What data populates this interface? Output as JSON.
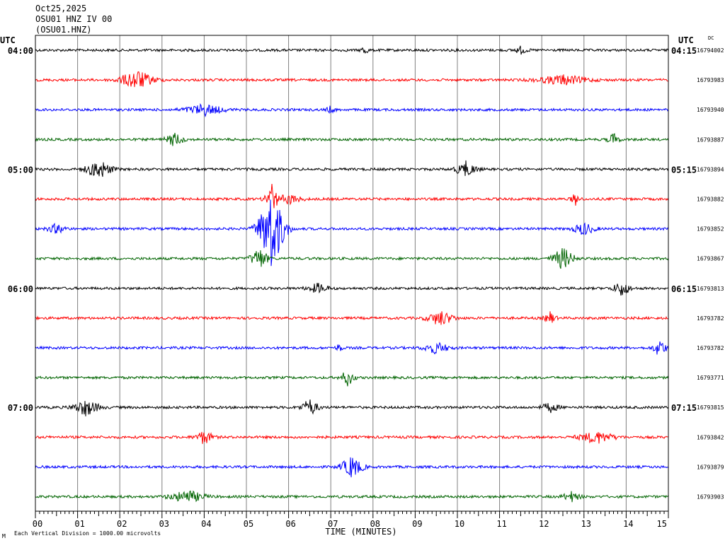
{
  "header": {
    "date": "Oct25,2025",
    "station": "OSU01 HNZ IV 00",
    "code": "(OSU01.HNZ)"
  },
  "labels": {
    "utc_left": "UTC",
    "utc_right": "UTC",
    "dc": "DC"
  },
  "colors": {
    "trace_cycle": [
      "#000000",
      "#ff0000",
      "#0000ff",
      "#006400"
    ],
    "grid": "#808080",
    "frame": "#000000"
  },
  "chart_data": {
    "type": "line",
    "title": "",
    "xlabel": "TIME (MINUTES)",
    "ylabel": "",
    "xlim": [
      0,
      15
    ],
    "x_ticks": [
      "00",
      "01",
      "02",
      "03",
      "04",
      "05",
      "06",
      "07",
      "08",
      "09",
      "10",
      "11",
      "12",
      "13",
      "14",
      "15"
    ],
    "hour_labels_left": [
      "04:00",
      "05:00",
      "06:00",
      "07:00"
    ],
    "hour_labels_right": [
      "04:15",
      "05:15",
      "06:15",
      "07:15"
    ],
    "trace_counts": [
      "16794002",
      "16793983",
      "16793940",
      "16793887",
      "16793894",
      "16793882",
      "16793852",
      "16793867",
      "16793813",
      "16793782",
      "16793782",
      "16793771",
      "16793815",
      "16793842",
      "16793879",
      "16793903"
    ],
    "events": [
      {
        "trace": 0,
        "minute": 7.8,
        "amp": 8,
        "dur": 0.15
      },
      {
        "trace": 0,
        "minute": 11.5,
        "amp": 5,
        "dur": 0.3
      },
      {
        "trace": 1,
        "minute": 2.4,
        "amp": 14,
        "dur": 0.8
      },
      {
        "trace": 1,
        "minute": 12.5,
        "amp": 7,
        "dur": 1.2
      },
      {
        "trace": 2,
        "minute": 4.0,
        "amp": 8,
        "dur": 0.9
      },
      {
        "trace": 2,
        "minute": 7.0,
        "amp": 5,
        "dur": 0.2
      },
      {
        "trace": 3,
        "minute": 3.3,
        "amp": 10,
        "dur": 0.4
      },
      {
        "trace": 3,
        "minute": 13.7,
        "amp": 9,
        "dur": 0.25
      },
      {
        "trace": 4,
        "minute": 1.5,
        "amp": 14,
        "dur": 0.6
      },
      {
        "trace": 4,
        "minute": 10.2,
        "amp": 11,
        "dur": 0.5
      },
      {
        "trace": 5,
        "minute": 5.6,
        "amp": 22,
        "dur": 0.3
      },
      {
        "trace": 5,
        "minute": 6.0,
        "amp": 7,
        "dur": 0.6
      },
      {
        "trace": 5,
        "minute": 12.8,
        "amp": 9,
        "dur": 0.2
      },
      {
        "trace": 6,
        "minute": 5.6,
        "amp": 62,
        "dur": 0.6
      },
      {
        "trace": 6,
        "minute": 0.5,
        "amp": 7,
        "dur": 0.4
      },
      {
        "trace": 6,
        "minute": 13.0,
        "amp": 9,
        "dur": 0.5
      },
      {
        "trace": 7,
        "minute": 5.3,
        "amp": 16,
        "dur": 0.4
      },
      {
        "trace": 7,
        "minute": 12.5,
        "amp": 16,
        "dur": 0.5
      },
      {
        "trace": 8,
        "minute": 6.7,
        "amp": 7,
        "dur": 0.5
      },
      {
        "trace": 8,
        "minute": 13.9,
        "amp": 11,
        "dur": 0.4
      },
      {
        "trace": 9,
        "minute": 9.6,
        "amp": 11,
        "dur": 0.6
      },
      {
        "trace": 9,
        "minute": 12.2,
        "amp": 9,
        "dur": 0.25
      },
      {
        "trace": 10,
        "minute": 9.5,
        "amp": 8,
        "dur": 0.6
      },
      {
        "trace": 10,
        "minute": 14.8,
        "amp": 13,
        "dur": 0.3
      },
      {
        "trace": 10,
        "minute": 7.2,
        "amp": 6,
        "dur": 0.15
      },
      {
        "trace": 11,
        "minute": 7.4,
        "amp": 12,
        "dur": 0.3
      },
      {
        "trace": 12,
        "minute": 1.2,
        "amp": 12,
        "dur": 0.6
      },
      {
        "trace": 12,
        "minute": 6.5,
        "amp": 12,
        "dur": 0.4
      },
      {
        "trace": 12,
        "minute": 12.2,
        "amp": 7,
        "dur": 0.4
      },
      {
        "trace": 13,
        "minute": 4.0,
        "amp": 10,
        "dur": 0.4
      },
      {
        "trace": 13,
        "minute": 13.3,
        "amp": 9,
        "dur": 0.8
      },
      {
        "trace": 14,
        "minute": 7.5,
        "amp": 16,
        "dur": 0.5
      },
      {
        "trace": 15,
        "minute": 3.6,
        "amp": 9,
        "dur": 0.8
      },
      {
        "trace": 15,
        "minute": 12.7,
        "amp": 7,
        "dur": 0.4
      }
    ]
  },
  "footer": {
    "mark": "M",
    "scale_note": "Each Vertical Division = 1000.00 microvolts"
  }
}
